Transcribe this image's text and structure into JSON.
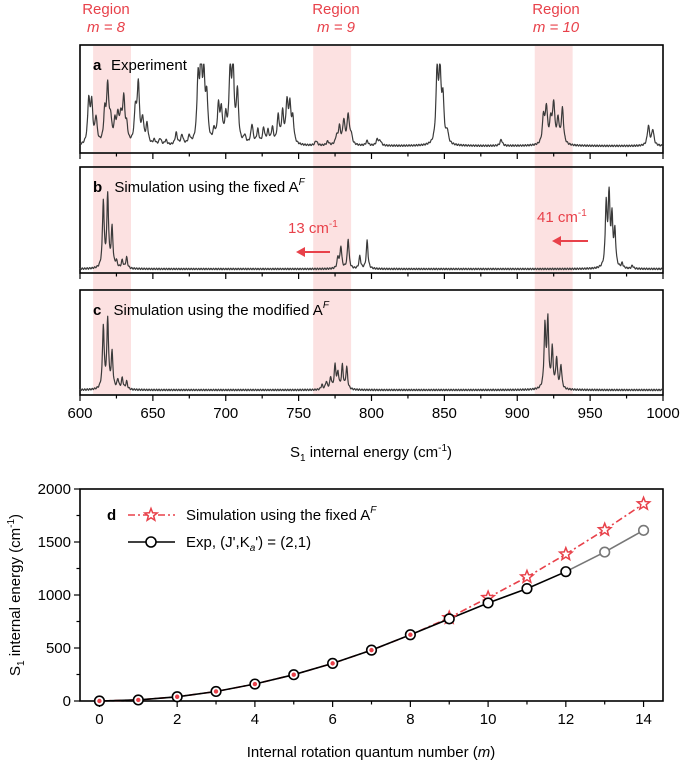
{
  "region_labels": [
    {
      "title": "Region",
      "m_label": "m = 8",
      "center_cm": 622
    },
    {
      "title": "Region",
      "m_label": "m = 9",
      "center_cm": 773
    },
    {
      "title": "Region",
      "m_label": "m = 10",
      "center_cm": 925
    }
  ],
  "band_halfwidth_cm": 13,
  "colors": {
    "red": "#e8414a",
    "band": "#f9c9c9",
    "spectrum": "#3a3a3a",
    "exp_gray": "#777777"
  },
  "chart_data": [
    {
      "type": "line",
      "panel": "a",
      "letter": "a",
      "title": "Experiment",
      "xlim": [
        600,
        1000
      ],
      "peaks": [
        [
          606,
          0.55
        ],
        [
          608,
          0.5
        ],
        [
          611,
          0.32
        ],
        [
          617,
          0.38
        ],
        [
          619,
          0.7
        ],
        [
          621,
          0.28
        ],
        [
          624,
          0.25
        ],
        [
          626,
          0.32
        ],
        [
          628,
          0.3
        ],
        [
          630,
          0.55
        ],
        [
          632,
          0.2
        ],
        [
          638,
          0.42
        ],
        [
          640,
          0.75
        ],
        [
          643,
          0.3
        ],
        [
          646,
          0.25
        ],
        [
          651,
          0.06
        ],
        [
          655,
          0.08
        ],
        [
          659,
          0.06
        ],
        [
          666,
          0.15
        ],
        [
          670,
          0.12
        ],
        [
          675,
          0.1
        ],
        [
          681,
          0.78
        ],
        [
          683,
          0.95
        ],
        [
          685,
          0.75
        ],
        [
          687,
          0.55
        ],
        [
          692,
          0.15
        ],
        [
          695,
          0.45
        ],
        [
          697,
          0.38
        ],
        [
          700,
          0.3
        ],
        [
          703,
          0.88
        ],
        [
          705,
          0.92
        ],
        [
          708,
          0.65
        ],
        [
          713,
          0.1
        ],
        [
          718,
          0.25
        ],
        [
          722,
          0.18
        ],
        [
          726,
          0.2
        ],
        [
          729,
          0.16
        ],
        [
          732,
          0.2
        ],
        [
          736,
          0.35
        ],
        [
          739,
          0.38
        ],
        [
          742,
          0.5
        ],
        [
          744,
          0.45
        ],
        [
          746,
          0.3
        ],
        [
          762,
          0.06
        ],
        [
          770,
          0.05
        ],
        [
          776,
          0.1
        ],
        [
          778,
          0.22
        ],
        [
          781,
          0.3
        ],
        [
          784,
          0.38
        ],
        [
          786,
          0.12
        ],
        [
          797,
          0.06
        ],
        [
          804,
          0.08
        ],
        [
          806,
          0.06
        ],
        [
          845,
          0.9
        ],
        [
          847,
          0.85
        ],
        [
          849,
          0.55
        ],
        [
          852,
          0.15
        ],
        [
          889,
          0.08
        ],
        [
          918,
          0.35
        ],
        [
          920,
          0.45
        ],
        [
          923,
          0.28
        ],
        [
          925,
          0.5
        ],
        [
          928,
          0.3
        ],
        [
          931,
          0.45
        ],
        [
          990,
          0.25
        ],
        [
          993,
          0.2
        ]
      ],
      "width_cm": 0.9
    },
    {
      "type": "line",
      "panel": "b",
      "letter": "b",
      "title": "Simulation using the fixed A",
      "superscript": "F",
      "xlim": [
        600,
        1000
      ],
      "peaks": [
        [
          616,
          0.85
        ],
        [
          619,
          0.92
        ],
        [
          622,
          0.5
        ],
        [
          625,
          0.08
        ],
        [
          629,
          0.1
        ],
        [
          632,
          0.14
        ],
        [
          777,
          0.14
        ],
        [
          779,
          0.28
        ],
        [
          784,
          0.38
        ],
        [
          792,
          0.16
        ],
        [
          797,
          0.36
        ],
        [
          961,
          0.8
        ],
        [
          963,
          0.92
        ],
        [
          965,
          0.6
        ],
        [
          967,
          0.45
        ],
        [
          972,
          0.06
        ],
        [
          979,
          0.04
        ]
      ],
      "width_cm": 0.7,
      "shift_annotations": [
        {
          "text": "13 cm",
          "exponent": "-1",
          "from_cm": 775,
          "to_cm": 758
        },
        {
          "text": "41 cm",
          "exponent": "-1",
          "from_cm": 950,
          "to_cm": 928
        }
      ]
    },
    {
      "type": "line",
      "panel": "c",
      "letter": "c",
      "title": "Simulation using the modified A",
      "superscript": "F",
      "xlim": [
        600,
        1000
      ],
      "peaks": [
        [
          616,
          0.8
        ],
        [
          619,
          0.88
        ],
        [
          622,
          0.45
        ],
        [
          626,
          0.12
        ],
        [
          629,
          0.14
        ],
        [
          632,
          0.1
        ],
        [
          766,
          0.06
        ],
        [
          769,
          0.1
        ],
        [
          772,
          0.15
        ],
        [
          775,
          0.3
        ],
        [
          777,
          0.2
        ],
        [
          780,
          0.3
        ],
        [
          783,
          0.28
        ],
        [
          919,
          0.78
        ],
        [
          921,
          0.85
        ],
        [
          924,
          0.5
        ],
        [
          927,
          0.38
        ],
        [
          930,
          0.3
        ]
      ],
      "width_cm": 0.7,
      "xlabel": "S",
      "xlabel_sub": "1",
      "xlabel_rest": " internal energy (cm",
      "xlabel_exp": "-1",
      "xlabel_end": ")",
      "xticks": [
        600,
        650,
        700,
        750,
        800,
        850,
        900,
        950,
        1000
      ]
    },
    {
      "type": "line",
      "panel": "d",
      "letter": "d",
      "xlim": [
        -0.5,
        14.5
      ],
      "ylim": [
        0,
        2000
      ],
      "xticks": [
        0,
        2,
        4,
        6,
        8,
        10,
        12,
        14
      ],
      "yticks": [
        0,
        500,
        1000,
        1500,
        2000
      ],
      "xlabel": "Internal rotation quantum number (",
      "xlabel_m": "m",
      "xlabel_end": ")",
      "ylabel": "S",
      "ylabel_sub": "1",
      "ylabel_rest": " internal energy (cm",
      "ylabel_exp": "-1",
      "ylabel_end": ")",
      "series": [
        {
          "name": "Simulation using the fixed A",
          "superscript": "F",
          "style": "dash-dot, star markers, red",
          "x": [
            0,
            1,
            2,
            3,
            4,
            5,
            6,
            7,
            8,
            9,
            10,
            11,
            12,
            13,
            14
          ],
          "values": [
            0,
            10,
            40,
            90,
            160,
            248,
            355,
            480,
            625,
            785,
            975,
            1170,
            1385,
            1615,
            1860
          ]
        },
        {
          "name": "Exp, (J',K",
          "name_sub": "a",
          "name_end": "') = (2,1)",
          "style": "solid, open circles, black (gray beyond m=12)",
          "x": [
            0,
            1,
            2,
            3,
            4,
            5,
            6,
            7,
            8,
            9,
            10,
            11,
            12,
            13,
            14
          ],
          "values": [
            0,
            10,
            40,
            90,
            160,
            248,
            355,
            480,
            625,
            775,
            925,
            1060,
            1220,
            1405,
            1610
          ]
        }
      ]
    }
  ]
}
